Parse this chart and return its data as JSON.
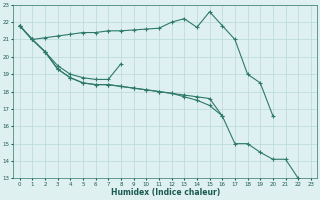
{
  "bg_color": "#dff0f0",
  "grid_color": "#b8d8d8",
  "line_color": "#2d7a6a",
  "xlabel": "Humidex (Indice chaleur)",
  "xlim": [
    -0.5,
    23.5
  ],
  "ylim": [
    13,
    23
  ],
  "yticks": [
    13,
    14,
    15,
    16,
    17,
    18,
    19,
    20,
    21,
    22,
    23
  ],
  "xticks": [
    0,
    1,
    2,
    3,
    4,
    5,
    6,
    7,
    8,
    9,
    10,
    11,
    12,
    13,
    14,
    15,
    16,
    17,
    18,
    19,
    20,
    21,
    22,
    23
  ],
  "lines": [
    {
      "x": [
        0,
        1,
        2,
        3,
        4,
        5,
        6,
        7,
        8,
        9,
        10,
        11,
        12,
        13,
        14,
        15,
        16,
        17,
        18,
        19,
        20
      ],
      "y": [
        21.8,
        21.0,
        21.1,
        21.2,
        21.3,
        21.4,
        21.4,
        21.5,
        21.5,
        21.55,
        21.6,
        21.65,
        22.0,
        22.2,
        21.7,
        22.6,
        21.8,
        21.0,
        19.0,
        18.5,
        16.6
      ]
    },
    {
      "x": [
        0,
        1,
        2,
        3,
        4,
        5,
        6,
        7,
        8
      ],
      "y": [
        21.8,
        21.0,
        20.3,
        19.5,
        19.0,
        18.8,
        18.7,
        18.7,
        19.6
      ]
    },
    {
      "x": [
        0,
        1,
        2,
        3,
        4,
        5,
        6,
        7,
        8,
        9,
        10,
        11,
        12,
        13,
        14,
        15,
        16
      ],
      "y": [
        21.8,
        21.0,
        20.3,
        19.3,
        18.8,
        18.5,
        18.4,
        18.4,
        18.3,
        18.2,
        18.1,
        18.0,
        17.9,
        17.8,
        17.7,
        17.6,
        16.6
      ]
    },
    {
      "x": [
        0,
        1,
        2,
        3,
        4,
        5,
        6,
        7,
        8,
        9,
        10,
        11,
        12,
        13,
        14,
        15,
        16,
        17,
        18,
        19,
        20,
        21,
        22
      ],
      "y": [
        21.8,
        21.0,
        20.3,
        19.3,
        18.8,
        18.5,
        18.4,
        18.4,
        18.3,
        18.2,
        18.1,
        18.0,
        17.9,
        17.7,
        17.5,
        17.2,
        16.6,
        15.0,
        15.0,
        14.5,
        14.1,
        14.1,
        13.0
      ]
    }
  ]
}
